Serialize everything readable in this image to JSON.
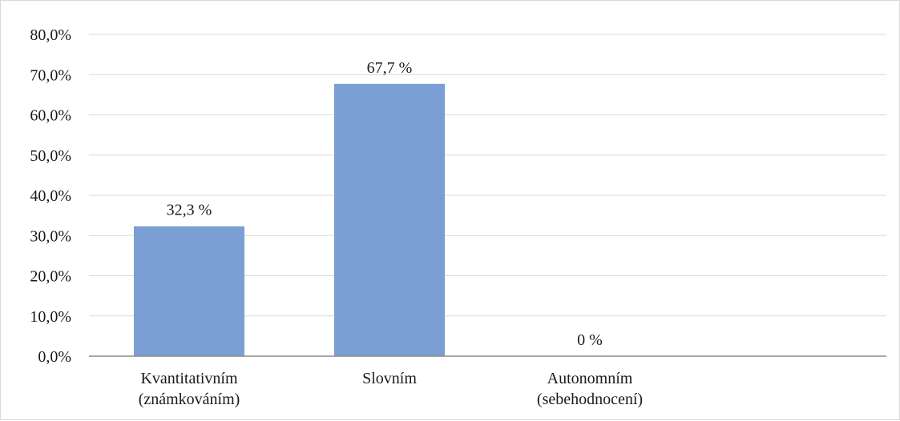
{
  "chart_data": {
    "type": "bar",
    "title": "",
    "xlabel": "",
    "ylabel": "",
    "categories": [
      [
        "Kvantitativním",
        "(známkováním)"
      ],
      [
        "Slovním"
      ],
      [
        "Autonomním",
        "(sebehodnocení)"
      ]
    ],
    "values": [
      32.3,
      67.7,
      0
    ],
    "data_labels": [
      "32,3 %",
      "67,7 %",
      "0 %"
    ],
    "ylim": [
      0,
      80
    ],
    "y_ticks": [
      0,
      10,
      20,
      30,
      40,
      50,
      60,
      70,
      80
    ],
    "y_tick_labels": [
      "0,0%",
      "10,0%",
      "20,0%",
      "30,0%",
      "40,0%",
      "50,0%",
      "60,0%",
      "70,0%",
      "80,0%"
    ],
    "grid": true,
    "legend": "none",
    "bar_color": "#7b9fd4",
    "grid_color": "#d9d9d9",
    "axis_color": "#8c8c8c"
  }
}
